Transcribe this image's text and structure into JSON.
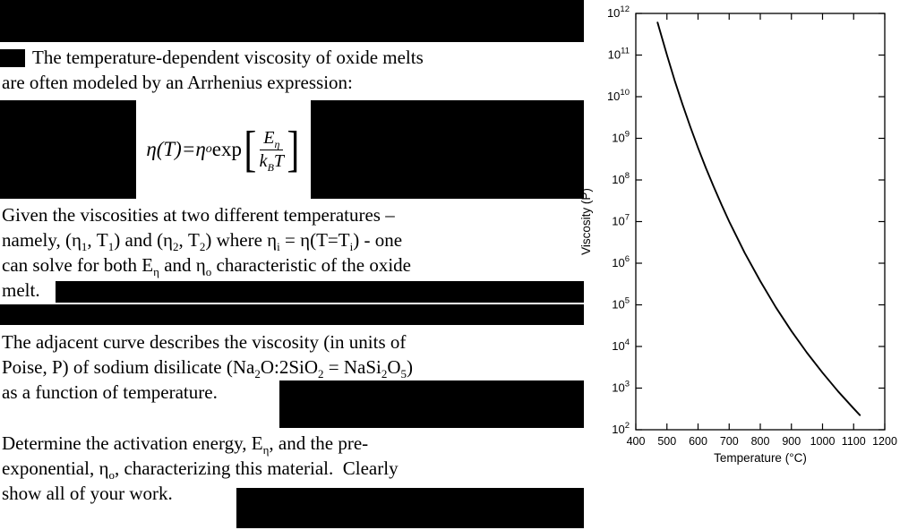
{
  "colors": {
    "background": "#ffffff",
    "text": "#000000",
    "redaction": "#000000",
    "curve": "#000000"
  },
  "paragraphs": {
    "p1": [
      [
        {
          "t": "The temperature-dependent viscosity of oxide melts"
        }
      ],
      [
        {
          "t": "are often modeled by an Arrhenius expression:"
        }
      ]
    ],
    "p2": [
      [
        {
          "t": "Given the viscosities at two different temperatures –"
        }
      ],
      [
        {
          "t": "namely, (η"
        },
        {
          "t": "1",
          "sub": true
        },
        {
          "t": ", T"
        },
        {
          "t": "1",
          "sub": true
        },
        {
          "t": ") and (η"
        },
        {
          "t": "2",
          "sub": true
        },
        {
          "t": ", T"
        },
        {
          "t": "2",
          "sub": true
        },
        {
          "t": ") where η"
        },
        {
          "t": "i",
          "sub": true
        },
        {
          "t": " = η(T=T"
        },
        {
          "t": "i",
          "sub": true
        },
        {
          "t": ") - one"
        }
      ],
      [
        {
          "t": "can solve for both E"
        },
        {
          "t": "η",
          "sub": true
        },
        {
          "t": " and η"
        },
        {
          "t": "o",
          "sub": true
        },
        {
          "t": " characteristic of the oxide"
        }
      ],
      [
        {
          "t": "melt."
        }
      ]
    ],
    "p3": [
      [
        {
          "t": "The adjacent curve describes the viscosity (in units of"
        }
      ],
      [
        {
          "t": "Poise, P) of sodium disilicate (Na"
        },
        {
          "t": "2",
          "sub": true
        },
        {
          "t": "O:2SiO"
        },
        {
          "t": "2",
          "sub": true
        },
        {
          "t": " = NaSi"
        },
        {
          "t": "2",
          "sub": true
        },
        {
          "t": "O"
        },
        {
          "t": "5",
          "sub": true
        },
        {
          "t": ")"
        }
      ],
      [
        {
          "t": "as a function of temperature."
        }
      ]
    ],
    "p4": [
      [
        {
          "t": "Determine the activation energy, E"
        },
        {
          "t": "η",
          "sub": true
        },
        {
          "t": ", and the pre-"
        }
      ],
      [
        {
          "t": "exponential, η"
        },
        {
          "t": "o",
          "sub": true
        },
        {
          "t": ", characterizing this material.  Clearly"
        }
      ],
      [
        {
          "t": "show all of your work."
        }
      ]
    ]
  },
  "equation": {
    "func": "η(T)",
    "eq": " = ",
    "pre_base": "η",
    "pre_sub": "o",
    "exp": " exp",
    "lbracket": "[",
    "rbracket": "]",
    "num_base": "E",
    "num_sub": "η",
    "den_base1": "k",
    "den_sub": "B",
    "den_base2": "T"
  },
  "chart_data": {
    "type": "line",
    "title": "",
    "xlabel": "Temperature (°C)",
    "ylabel": "Viscosity (P)",
    "xlim": [
      400,
      1200
    ],
    "x_ticks": [
      400,
      500,
      600,
      700,
      800,
      900,
      1000,
      1100,
      1200
    ],
    "y_scale": "log10",
    "ylim_log10": [
      2,
      12
    ],
    "y_tick_exponents": [
      2,
      3,
      4,
      5,
      6,
      7,
      8,
      9,
      10,
      11,
      12
    ],
    "grid": false,
    "legend": "none",
    "series": [
      {
        "name": "sodium disilicate viscosity",
        "points": [
          {
            "T_C": 470,
            "log10_viscosity_P": 11.78
          },
          {
            "T_C": 500,
            "log10_viscosity_P": 11.0
          },
          {
            "T_C": 525,
            "log10_viscosity_P": 10.39
          },
          {
            "T_C": 550,
            "log10_viscosity_P": 9.82
          },
          {
            "T_C": 575,
            "log10_viscosity_P": 9.28
          },
          {
            "T_C": 600,
            "log10_viscosity_P": 8.77
          },
          {
            "T_C": 625,
            "log10_viscosity_P": 8.29
          },
          {
            "T_C": 650,
            "log10_viscosity_P": 7.84
          },
          {
            "T_C": 675,
            "log10_viscosity_P": 7.41
          },
          {
            "T_C": 700,
            "log10_viscosity_P": 7.0
          },
          {
            "T_C": 750,
            "log10_viscosity_P": 6.25
          },
          {
            "T_C": 800,
            "log10_viscosity_P": 5.57
          },
          {
            "T_C": 850,
            "log10_viscosity_P": 4.94
          },
          {
            "T_C": 900,
            "log10_viscosity_P": 4.37
          },
          {
            "T_C": 950,
            "log10_viscosity_P": 3.85
          },
          {
            "T_C": 1000,
            "log10_viscosity_P": 3.37
          },
          {
            "T_C": 1050,
            "log10_viscosity_P": 2.92
          },
          {
            "T_C": 1100,
            "log10_viscosity_P": 2.51
          },
          {
            "T_C": 1120,
            "log10_viscosity_P": 2.35
          }
        ]
      }
    ]
  }
}
